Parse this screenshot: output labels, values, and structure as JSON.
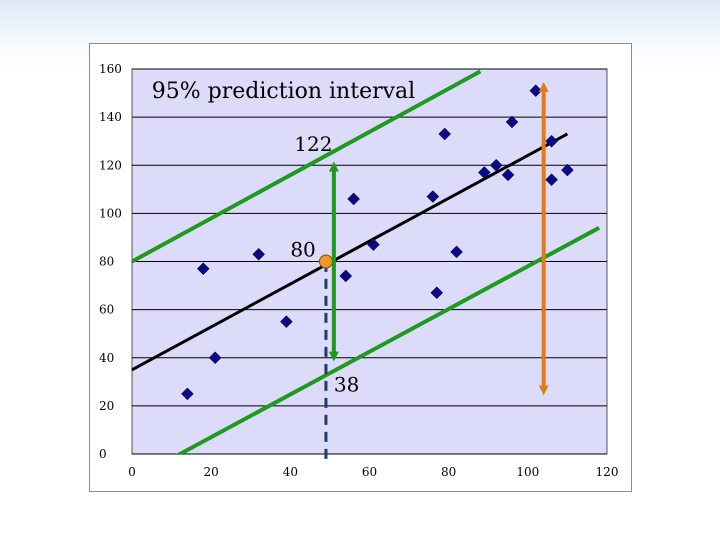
{
  "chart_data": {
    "type": "scatter",
    "x_ticks": [
      "0",
      "20",
      "40",
      "60",
      "80",
      "100",
      "120"
    ],
    "y_ticks": [
      "0",
      "20",
      "40",
      "60",
      "80",
      "100",
      "120",
      "140",
      "160"
    ],
    "xlim": [
      0,
      120
    ],
    "ylim": [
      0,
      160
    ],
    "grid": "horizontal",
    "points": [
      {
        "x": 14,
        "y": 25
      },
      {
        "x": 18,
        "y": 77
      },
      {
        "x": 21,
        "y": 40
      },
      {
        "x": 32,
        "y": 83
      },
      {
        "x": 39,
        "y": 55
      },
      {
        "x": 54,
        "y": 74
      },
      {
        "x": 56,
        "y": 106
      },
      {
        "x": 61,
        "y": 87
      },
      {
        "x": 76,
        "y": 107
      },
      {
        "x": 77,
        "y": 67
      },
      {
        "x": 79,
        "y": 133
      },
      {
        "x": 82,
        "y": 84
      },
      {
        "x": 89,
        "y": 117
      },
      {
        "x": 92,
        "y": 120
      },
      {
        "x": 95,
        "y": 116
      },
      {
        "x": 96,
        "y": 138
      },
      {
        "x": 102,
        "y": 151
      },
      {
        "x": 106,
        "y": 130
      },
      {
        "x": 106,
        "y": 114
      },
      {
        "x": 110,
        "y": 118
      }
    ],
    "regression_line": {
      "x": [
        0,
        110
      ],
      "y": [
        35,
        133
      ],
      "color": "#000000"
    },
    "prediction_bands": {
      "upper": {
        "x": [
          0,
          88
        ],
        "y": [
          80,
          159
        ]
      },
      "lower": {
        "x": [
          11,
          118
        ],
        "y": [
          -1,
          94
        ]
      },
      "color": "#1f9a1f"
    },
    "highlight_point": {
      "x": 49,
      "y": 80,
      "color": "#f0962a"
    },
    "dashed_guide": {
      "x": 49,
      "y_from": -2,
      "y_to": 80,
      "color": "#1f3b6f"
    },
    "interval_arrow_green": {
      "x": 51,
      "y_from": 122,
      "y_to": 38,
      "color": "#1f9a1f"
    },
    "interval_arrow_orange": {
      "x": 104,
      "y_from": 155,
      "y_to": 24,
      "color": "#e07d12"
    },
    "annotations": [
      {
        "text": "95% prediction interval",
        "x": 5,
        "y": 148,
        "size": 22
      },
      {
        "text": "122",
        "x": 41,
        "y": 126,
        "size": 20
      },
      {
        "text": "80",
        "x": 40,
        "y": 82,
        "size": 20
      },
      {
        "text": "38",
        "x": 51,
        "y": 26,
        "size": 20
      }
    ],
    "colors": {
      "plot_background": "#dcdcfa",
      "grid": "#000000",
      "marker": "#0a0a82"
    }
  }
}
